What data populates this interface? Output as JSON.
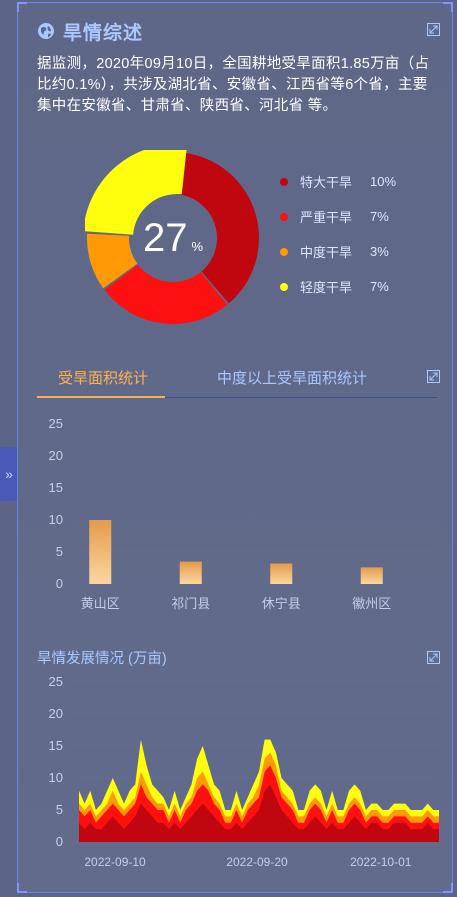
{
  "header": {
    "title": "旱情综述"
  },
  "summary": "据监测，2020年09月10日，全国耕地受旱面积1.85万亩（占比约0.1%），共涉及湖北省、安徽省、江西省等6个省，主要集中在安徽省、甘肃省、陕西省、河北省 等。",
  "donut": {
    "center_value": "27",
    "center_unit": "%",
    "segments": [
      {
        "name": "特大干旱",
        "value_label": "10%",
        "value": 10,
        "color": "#c0060e"
      },
      {
        "name": "严重干旱",
        "value_label": "7%",
        "value": 7,
        "color": "#ff1010"
      },
      {
        "name": "中度干旱",
        "value_label": "3%",
        "value": 3,
        "color": "#ff9a06"
      },
      {
        "name": "轻度干旱",
        "value_label": "7%",
        "value": 7,
        "color": "#ffff0c"
      }
    ]
  },
  "tabs": [
    {
      "label": "受旱面积统计",
      "active": true
    },
    {
      "label": "中度以上受旱面积统计",
      "active": false
    }
  ],
  "chart_data": [
    {
      "type": "bar",
      "categories": [
        "黄山区",
        "祁门县",
        "休宁县",
        "徽州区"
      ],
      "values": [
        10,
        3.5,
        3.2,
        2.6
      ],
      "yticks": [
        0,
        5,
        10,
        15,
        20,
        25
      ],
      "ylim": [
        0,
        25
      ],
      "grid": true
    },
    {
      "type": "area",
      "title": "旱情发展情况 (万亩)",
      "stacked": true,
      "xticks": [
        "2022-09-10",
        "2022-09-20",
        "2022-10-01"
      ],
      "yticks": [
        0,
        5,
        10,
        15,
        20,
        25
      ],
      "ylim": [
        0,
        25
      ],
      "grid": true,
      "series": [
        {
          "name": "特大干旱",
          "color": "#c0060e",
          "values": [
            3,
            2,
            3,
            2,
            2,
            3,
            4,
            3,
            2,
            3,
            4,
            6,
            5,
            4,
            3,
            3,
            2,
            3,
            2,
            3,
            4,
            5,
            6,
            5,
            4,
            3,
            2,
            2,
            3,
            2,
            3,
            4,
            5,
            8,
            9,
            7,
            5,
            4,
            3,
            2,
            2,
            3,
            4,
            3,
            2,
            3,
            2,
            2,
            3,
            4,
            3,
            2,
            3,
            3,
            2,
            2,
            3,
            3,
            3,
            2,
            2,
            2,
            3,
            2,
            2
          ]
        },
        {
          "name": "严重干旱",
          "color": "#ff1010",
          "values": [
            2,
            2,
            2,
            1,
            2,
            2,
            2,
            2,
            2,
            2,
            2,
            3,
            2,
            2,
            2,
            2,
            1,
            2,
            1,
            2,
            2,
            3,
            3,
            3,
            2,
            2,
            1,
            1,
            2,
            1,
            2,
            2,
            2,
            3,
            3,
            3,
            2,
            2,
            2,
            1,
            1,
            2,
            2,
            2,
            1,
            2,
            1,
            1,
            2,
            2,
            2,
            1,
            1,
            1,
            1,
            1,
            1,
            1,
            1,
            1,
            1,
            1,
            1,
            1,
            1
          ]
        },
        {
          "name": "中度干旱",
          "color": "#ff9a06",
          "values": [
            1,
            1,
            1,
            1,
            1,
            1,
            2,
            1,
            1,
            1,
            1,
            2,
            2,
            1,
            1,
            1,
            1,
            1,
            1,
            1,
            1,
            2,
            2,
            1,
            1,
            1,
            1,
            1,
            1,
            1,
            1,
            1,
            2,
            2,
            2,
            2,
            1,
            1,
            1,
            1,
            1,
            1,
            1,
            1,
            1,
            1,
            1,
            1,
            1,
            1,
            1,
            1,
            1,
            1,
            1,
            1,
            1,
            1,
            1,
            1,
            1,
            1,
            1,
            1,
            1
          ]
        },
        {
          "name": "轻度干旱",
          "color": "#ffff0c",
          "values": [
            2,
            1,
            2,
            1,
            1,
            2,
            2,
            2,
            1,
            2,
            2,
            5,
            3,
            2,
            2,
            1,
            1,
            2,
            1,
            1,
            2,
            3,
            4,
            3,
            2,
            2,
            1,
            1,
            2,
            1,
            1,
            2,
            2,
            3,
            2,
            2,
            2,
            2,
            2,
            1,
            1,
            2,
            2,
            2,
            1,
            2,
            1,
            1,
            2,
            2,
            2,
            1,
            1,
            1,
            1,
            1,
            1,
            1,
            1,
            1,
            1,
            1,
            1,
            1,
            1
          ]
        }
      ]
    }
  ]
}
